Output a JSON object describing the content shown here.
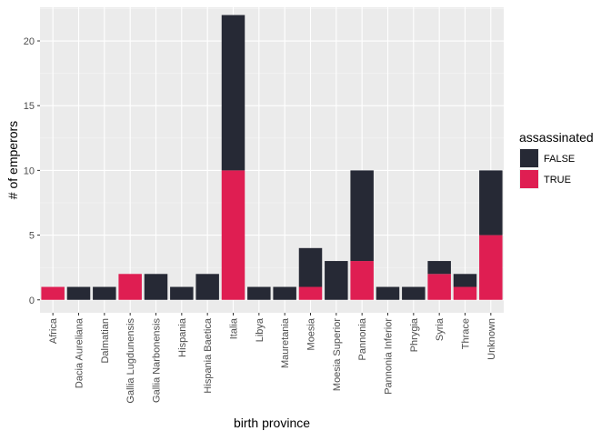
{
  "chart_data": {
    "type": "bar",
    "stacked": true,
    "xlabel": "birth province",
    "ylabel": "# of emperors",
    "ylim": [
      -1,
      22.6
    ],
    "yticks": [
      0,
      5,
      10,
      15,
      20
    ],
    "grid": true,
    "legend_position": "right",
    "legend_title": "assassinated",
    "categories": [
      "Africa",
      "Dacia Aureliana",
      "Dalmatian",
      "Gallia Lugdunensis",
      "Gallia Narbonensis",
      "Hispania",
      "Hispania Baetica",
      "Italia",
      "Libya",
      "Mauretania",
      "Moesia",
      "Moesia Superior",
      "Pannonia",
      "Pannonia Inferior",
      "Phrygia",
      "Syria",
      "Thrace",
      "Unknown"
    ],
    "series": [
      {
        "name": "FALSE",
        "color": "#262935",
        "values": [
          0,
          1,
          1,
          0,
          2,
          1,
          2,
          12,
          1,
          1,
          3,
          3,
          7,
          1,
          1,
          1,
          1,
          5
        ]
      },
      {
        "name": "TRUE",
        "color": "#DF1E52",
        "values": [
          1,
          0,
          0,
          2,
          0,
          0,
          0,
          10,
          0,
          0,
          1,
          0,
          3,
          0,
          0,
          2,
          1,
          5
        ]
      }
    ]
  }
}
